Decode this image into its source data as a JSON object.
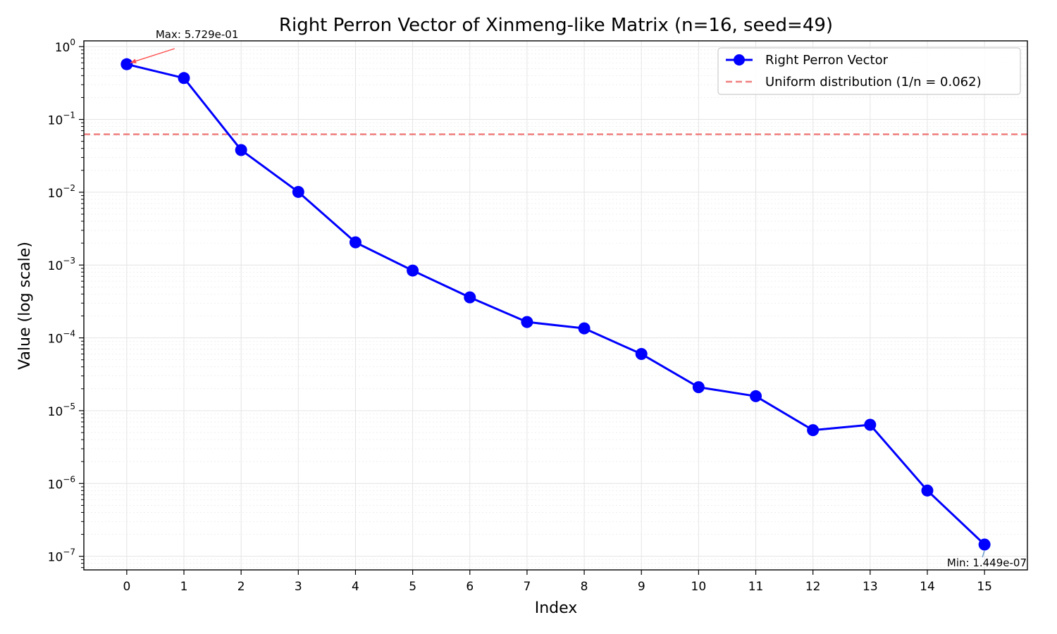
{
  "chart_data": {
    "type": "line",
    "title": "Right Perron Vector of Xinmeng-like Matrix (n=16, seed=49)",
    "xlabel": "Index",
    "ylabel": "Value (log scale)",
    "yscale": "log",
    "ylim": [
      6.5e-08,
      1.2
    ],
    "xlim": [
      -0.75,
      15.75
    ],
    "grid": true,
    "legend_position": "top-right",
    "x": [
      0,
      1,
      2,
      3,
      4,
      5,
      6,
      7,
      8,
      9,
      10,
      11,
      12,
      13,
      14,
      15
    ],
    "x_tick_labels": [
      "0",
      "1",
      "2",
      "3",
      "4",
      "5",
      "6",
      "7",
      "8",
      "9",
      "10",
      "11",
      "12",
      "13",
      "14",
      "15"
    ],
    "y_ticks": [
      {
        "value": 1,
        "base": "10",
        "exp": "0"
      },
      {
        "value": 0.1,
        "base": "10",
        "exp": "−1"
      },
      {
        "value": 0.01,
        "base": "10",
        "exp": "−2"
      },
      {
        "value": 0.001,
        "base": "10",
        "exp": "−3"
      },
      {
        "value": 0.0001,
        "base": "10",
        "exp": "−4"
      },
      {
        "value": 1e-05,
        "base": "10",
        "exp": "−5"
      },
      {
        "value": 1e-06,
        "base": "10",
        "exp": "−6"
      },
      {
        "value": 1e-07,
        "base": "10",
        "exp": "−7"
      }
    ],
    "series": [
      {
        "name": "Right Perron Vector",
        "color": "#0000ff",
        "style": "solid-line-with-circle-markers",
        "values": [
          0.5729,
          0.37,
          0.038,
          0.0101,
          0.00205,
          0.00084,
          0.00036,
          0.000165,
          0.000135,
          6e-05,
          2.1e-05,
          1.58e-05,
          5.4e-06,
          6.4e-06,
          8e-07,
          1.449e-07
        ]
      },
      {
        "name": "Uniform distribution (1/n = 0.062)",
        "color": "#f08080",
        "style": "dashed-horizontal-line",
        "value": 0.0625
      }
    ],
    "annotations": [
      {
        "text": "Max: 5.729e-01",
        "target_index": 0,
        "target_value": 0.5729,
        "color": "#ff4d4d"
      },
      {
        "text": "Min: 1.449e-07",
        "target_index": 15,
        "target_value": 1.449e-07,
        "color": "#6699cc"
      }
    ]
  }
}
